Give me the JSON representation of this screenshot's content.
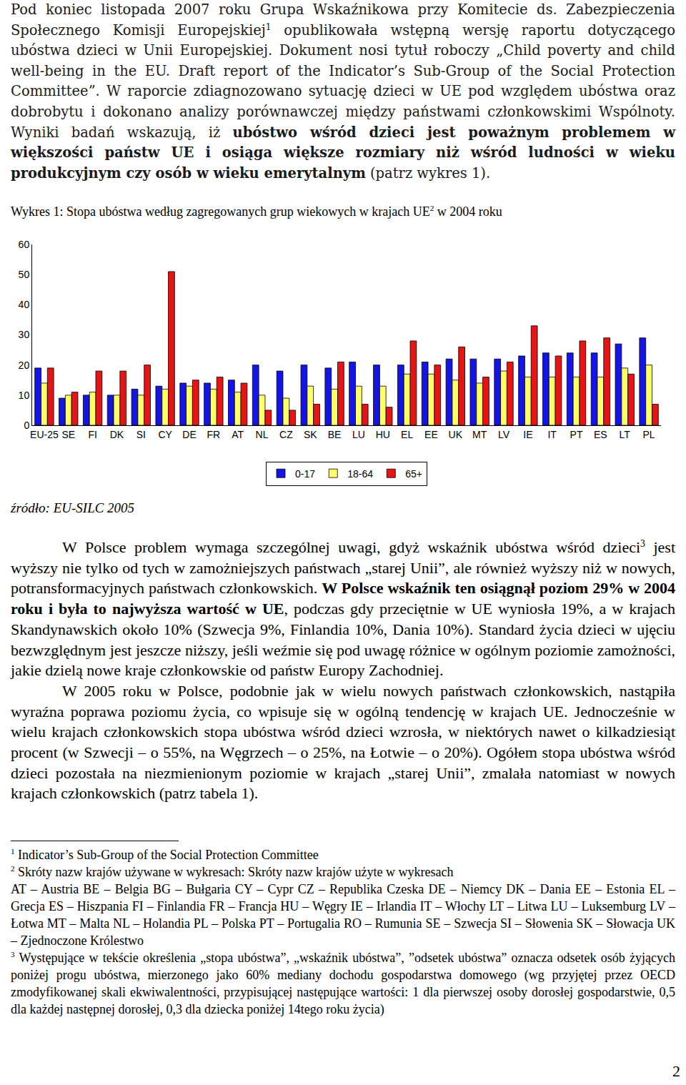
{
  "intro": [
    {
      "t": "Pod koniec listopada 2007 roku Grupa Wskaźnikowa przy Komitecie ds. Zabezpieczenia Społecznego Komisji Europejskiej"
    },
    {
      "t": "1",
      "sup": true
    },
    {
      "t": " opublikowała wstępną wersję raportu dotyczącego ubóstwa dzieci w Unii Europejskiej. Dokument nosi tytuł roboczy „Child poverty and child well-being in the EU. Draft report of the Indicator’s Sub-Group of the Social Protection Committee”. W raporcie zdiagnozowano sytuację dzieci w UE pod względem ubóstwa oraz dobrobytu i dokonano analizy porównawczej między państwami członkowskimi Wspólnoty. Wyniki badań wskazują, iż "
    },
    {
      "t": "ubóstwo wśród dzieci jest poważnym problemem w większości państw UE i osiąga większe rozmiary niż wśród ludności w wieku produkcyjnym czy osób w wieku emerytalnym",
      "bold": true
    },
    {
      "t": " (patrz wykres 1)."
    }
  ],
  "figure_caption": [
    {
      "t": "Wykres 1: Stopa ubóstwa według zagregowanych grup wiekowych w krajach UE"
    },
    {
      "t": "2",
      "sup": true
    },
    {
      "t": " w 2004 roku"
    }
  ],
  "chart_data": {
    "type": "bar",
    "categories": [
      "EU-25",
      "SE",
      "FI",
      "DK",
      "SI",
      "CY",
      "DE",
      "FR",
      "AT",
      "NL",
      "CZ",
      "SK",
      "BE",
      "LU",
      "HU",
      "EL",
      "EE",
      "UK",
      "MT",
      "LV",
      "IE",
      "IT",
      "PT",
      "ES",
      "LT",
      "PL"
    ],
    "series": [
      {
        "name": "0-17",
        "color": "#1414e6",
        "values": [
          19,
          9,
          10,
          10,
          12,
          13,
          14,
          14,
          15,
          20,
          18,
          20,
          19,
          21,
          20,
          20,
          21,
          22,
          22,
          22,
          23,
          24,
          24,
          24,
          27,
          29
        ]
      },
      {
        "name": "18-64",
        "color": "#ffff66",
        "values": [
          14,
          10,
          11,
          10,
          10,
          12,
          13,
          12,
          11,
          10,
          9,
          13,
          12,
          13,
          13,
          17,
          17,
          15,
          14,
          18,
          16,
          16,
          16,
          16,
          19,
          20
        ]
      },
      {
        "name": "65+",
        "color": "#e61414",
        "values": [
          19,
          11,
          18,
          18,
          20,
          51,
          15,
          16,
          14,
          5,
          5,
          7,
          21,
          7,
          6,
          28,
          20,
          26,
          16,
          21,
          33,
          23,
          28,
          29,
          17,
          7
        ]
      }
    ],
    "ylim": [
      0,
      60
    ],
    "yticks": [
      0,
      10,
      20,
      30,
      40,
      50,
      60
    ],
    "grid": false,
    "legend": "bottom"
  },
  "source": "źródło: EU-SILC 2005",
  "body": [
    [
      {
        "t": "W Polsce problem wymaga szczególnej uwagi, gdyż wskaźnik ubóstwa wśród dzieci"
      },
      {
        "t": "3",
        "sup": true
      },
      {
        "t": " jest wyższy nie tylko od tych w zamożniejszych państwach „starej Unii”, ale również wyższy niż w nowych, potransformacyjnych państwach członkowskich. "
      },
      {
        "t": "W Polsce wskaźnik ten osiągnął poziom 29% w 2004 roku i była to najwyższa wartość w UE",
        "bold": true
      },
      {
        "t": ", podczas gdy przeciętnie w UE wyniosła 19%, a w krajach Skandynawskich około 10% (Szwecja 9%, Finlandia 10%, Dania 10%). Standard życia dzieci w ujęciu bezwzględnym jest jeszcze niższy, jeśli weźmie się pod uwagę różnice w ogólnym poziomie zamożności, jakie dzielą nowe kraje członkowskie od państw Europy Zachodniej."
      }
    ],
    [
      {
        "t": "W 2005 roku w Polsce, podobnie jak w wielu nowych państwach członkowskich, nastąpiła wyraźna poprawa poziomu życia, co wpisuje się w ogólną tendencję w krajach UE. Jednocześnie w wielu krajach członkowskich stopa ubóstwa wśród dzieci wzrosła, w niektórych nawet o kilkadziesiąt procent (w Szwecji – o 55%, na Węgrzech – o 25%, na Łotwie – o 20%). Ogółem stopa ubóstwa wśród dzieci pozostała na niezmienionym poziomie w krajach „starej Unii”, zmalała natomiast w nowych krajach członkowskich (patrz tabela 1)."
      }
    ]
  ],
  "footnotes": [
    {
      "mark": "1",
      "paragraphs": [
        "Indicator’s Sub-Group of the Social Protection Committee"
      ]
    },
    {
      "mark": "2",
      "paragraphs": [
        "Skróty nazw krajów używane w wykresach: Skróty nazw krajów użyte w wykresach",
        "AT – Austria BE – Belgia BG – Bułgaria CY – Cypr CZ – Republika Czeska DE – Niemcy DK – Dania EE – Estonia EL – Grecja ES – Hiszpania FI – Finlandia FR – Francja HU – Węgry IE – Irlandia IT – Włochy LT – Litwa LU – Luksemburg LV – Łotwa MT – Malta NL – Holandia PL – Polska PT – Portugalia RO – Rumunia SE – Szwecja SI – Słowenia SK – Słowacja UK – Zjednoczone Królestwo"
      ]
    },
    {
      "mark": "3",
      "paragraphs": [
        "Występujące w tekście określenia „stopa ubóstwa”, „wskaźnik ubóstwa”, ”odsetek ubóstwa” oznacza odsetek osób żyjących poniżej progu ubóstwa, mierzonego jako 60% mediany dochodu gospodarstwa domowego (wg przyjętej przez OECD zmodyfikowanej skali ekwiwalentności, przypisującej następujące wartości: 1 dla pierwszej osoby dorosłej  gospodarstwie, 0,5 dla każdej następnej dorosłej, 0,3 dla dziecka poniżej 14tego roku życia)"
      ]
    }
  ],
  "page_number": "2"
}
